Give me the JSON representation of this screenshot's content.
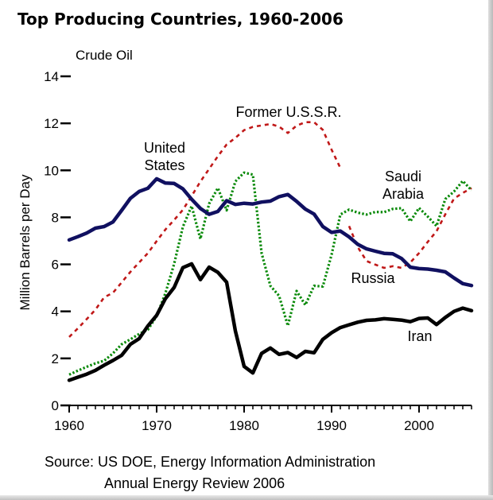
{
  "chart_data": {
    "type": "line",
    "title": "Top Producing Countries, 1960-2006",
    "subtitle": "Crude Oil",
    "xlabel": "",
    "ylabel": "Million Barrels per Day",
    "xlim": [
      1960,
      2006
    ],
    "ylim": [
      0,
      14
    ],
    "x_ticks": [
      1960,
      1970,
      1980,
      1990,
      2000
    ],
    "y_ticks": [
      0,
      2,
      4,
      6,
      8,
      10,
      12,
      14
    ],
    "grid": false,
    "legend": "none (series labeled directly on the plot)",
    "series": [
      {
        "name": "United States",
        "label": [
          "United",
          "States"
        ],
        "color": "#101060",
        "style": "solid",
        "points": [
          [
            1960,
            7.04
          ],
          [
            1961,
            7.18
          ],
          [
            1962,
            7.33
          ],
          [
            1963,
            7.54
          ],
          [
            1964,
            7.61
          ],
          [
            1965,
            7.8
          ],
          [
            1966,
            8.3
          ],
          [
            1967,
            8.81
          ],
          [
            1968,
            9.1
          ],
          [
            1969,
            9.24
          ],
          [
            1970,
            9.64
          ],
          [
            1971,
            9.46
          ],
          [
            1972,
            9.44
          ],
          [
            1973,
            9.21
          ],
          [
            1974,
            8.77
          ],
          [
            1975,
            8.38
          ],
          [
            1976,
            8.13
          ],
          [
            1977,
            8.25
          ],
          [
            1978,
            8.71
          ],
          [
            1979,
            8.55
          ],
          [
            1980,
            8.6
          ],
          [
            1981,
            8.57
          ],
          [
            1982,
            8.65
          ],
          [
            1983,
            8.69
          ],
          [
            1984,
            8.88
          ],
          [
            1985,
            8.97
          ],
          [
            1986,
            8.68
          ],
          [
            1987,
            8.35
          ],
          [
            1988,
            8.14
          ],
          [
            1989,
            7.61
          ],
          [
            1990,
            7.36
          ],
          [
            1991,
            7.42
          ],
          [
            1992,
            7.17
          ],
          [
            1993,
            6.85
          ],
          [
            1994,
            6.66
          ],
          [
            1995,
            6.56
          ],
          [
            1996,
            6.47
          ],
          [
            1997,
            6.45
          ],
          [
            1998,
            6.25
          ],
          [
            1999,
            5.88
          ],
          [
            2000,
            5.82
          ],
          [
            2001,
            5.8
          ],
          [
            2002,
            5.75
          ],
          [
            2003,
            5.68
          ],
          [
            2004,
            5.42
          ],
          [
            2005,
            5.18
          ],
          [
            2006,
            5.1
          ]
        ]
      },
      {
        "name": "Former U.S.S.R.",
        "label": [
          "Former U.S.S.R."
        ],
        "color": "#c01818",
        "style": "dashed",
        "points": [
          [
            1960,
            2.91
          ],
          [
            1961,
            3.28
          ],
          [
            1962,
            3.67
          ],
          [
            1963,
            4.07
          ],
          [
            1964,
            4.6
          ],
          [
            1965,
            4.79
          ],
          [
            1966,
            5.23
          ],
          [
            1967,
            5.68
          ],
          [
            1968,
            6.08
          ],
          [
            1969,
            6.48
          ],
          [
            1970,
            6.99
          ],
          [
            1971,
            7.48
          ],
          [
            1972,
            7.89
          ],
          [
            1973,
            8.32
          ],
          [
            1974,
            8.91
          ],
          [
            1975,
            9.52
          ],
          [
            1976,
            10.06
          ],
          [
            1977,
            10.6
          ],
          [
            1978,
            11.1
          ],
          [
            1979,
            11.38
          ],
          [
            1980,
            11.71
          ],
          [
            1981,
            11.85
          ],
          [
            1982,
            11.91
          ],
          [
            1983,
            11.97
          ],
          [
            1984,
            11.86
          ],
          [
            1985,
            11.59
          ],
          [
            1986,
            11.9
          ],
          [
            1987,
            12.05
          ],
          [
            1988,
            12.05
          ],
          [
            1989,
            11.72
          ],
          [
            1990,
            10.88
          ],
          [
            1991,
            10.1
          ]
        ]
      },
      {
        "name": "Russia",
        "label": [
          "Russia"
        ],
        "color": "#c01818",
        "style": "dashed",
        "points": [
          [
            1992,
            7.63
          ],
          [
            1993,
            6.73
          ],
          [
            1994,
            6.14
          ],
          [
            1995,
            5.99
          ],
          [
            1996,
            5.85
          ],
          [
            1997,
            5.92
          ],
          [
            1998,
            5.85
          ],
          [
            1999,
            6.08
          ],
          [
            2000,
            6.48
          ],
          [
            2001,
            6.96
          ],
          [
            2002,
            7.41
          ],
          [
            2003,
            8.13
          ],
          [
            2004,
            8.8
          ],
          [
            2005,
            9.04
          ],
          [
            2006,
            9.25
          ]
        ]
      },
      {
        "name": "Saudi Arabia",
        "label": [
          "Saudi",
          "Arabia"
        ],
        "color": "#0a8a0a",
        "style": "dotted",
        "points": [
          [
            1960,
            1.31
          ],
          [
            1961,
            1.48
          ],
          [
            1962,
            1.64
          ],
          [
            1963,
            1.79
          ],
          [
            1964,
            1.9
          ],
          [
            1965,
            2.21
          ],
          [
            1966,
            2.6
          ],
          [
            1967,
            2.81
          ],
          [
            1968,
            3.04
          ],
          [
            1969,
            3.22
          ],
          [
            1970,
            3.8
          ],
          [
            1971,
            4.77
          ],
          [
            1972,
            6.02
          ],
          [
            1973,
            7.6
          ],
          [
            1974,
            8.48
          ],
          [
            1975,
            7.08
          ],
          [
            1976,
            8.58
          ],
          [
            1977,
            9.25
          ],
          [
            1978,
            8.3
          ],
          [
            1979,
            9.53
          ],
          [
            1980,
            9.9
          ],
          [
            1981,
            9.82
          ],
          [
            1982,
            6.48
          ],
          [
            1983,
            5.09
          ],
          [
            1984,
            4.66
          ],
          [
            1985,
            3.39
          ],
          [
            1986,
            4.87
          ],
          [
            1987,
            4.27
          ],
          [
            1988,
            5.09
          ],
          [
            1989,
            5.06
          ],
          [
            1990,
            6.41
          ],
          [
            1991,
            8.12
          ],
          [
            1992,
            8.33
          ],
          [
            1993,
            8.2
          ],
          [
            1994,
            8.12
          ],
          [
            1995,
            8.23
          ],
          [
            1996,
            8.22
          ],
          [
            1997,
            8.36
          ],
          [
            1998,
            8.39
          ],
          [
            1999,
            7.83
          ],
          [
            2000,
            8.4
          ],
          [
            2001,
            8.03
          ],
          [
            2002,
            7.63
          ],
          [
            2003,
            8.78
          ],
          [
            2004,
            9.1
          ],
          [
            2005,
            9.55
          ],
          [
            2006,
            9.15
          ]
        ]
      },
      {
        "name": "Iran",
        "label": [
          "Iran"
        ],
        "color": "#000000",
        "style": "solid",
        "points": [
          [
            1960,
            1.07
          ],
          [
            1961,
            1.2
          ],
          [
            1962,
            1.33
          ],
          [
            1963,
            1.49
          ],
          [
            1964,
            1.71
          ],
          [
            1965,
            1.91
          ],
          [
            1966,
            2.13
          ],
          [
            1967,
            2.6
          ],
          [
            1968,
            2.84
          ],
          [
            1969,
            3.38
          ],
          [
            1970,
            3.83
          ],
          [
            1971,
            4.54
          ],
          [
            1972,
            5.02
          ],
          [
            1973,
            5.86
          ],
          [
            1974,
            6.02
          ],
          [
            1975,
            5.35
          ],
          [
            1976,
            5.88
          ],
          [
            1977,
            5.66
          ],
          [
            1978,
            5.24
          ],
          [
            1979,
            3.17
          ],
          [
            1980,
            1.66
          ],
          [
            1981,
            1.38
          ],
          [
            1982,
            2.21
          ],
          [
            1983,
            2.44
          ],
          [
            1984,
            2.17
          ],
          [
            1985,
            2.25
          ],
          [
            1986,
            2.04
          ],
          [
            1987,
            2.3
          ],
          [
            1988,
            2.24
          ],
          [
            1989,
            2.81
          ],
          [
            1990,
            3.09
          ],
          [
            1991,
            3.31
          ],
          [
            1992,
            3.43
          ],
          [
            1993,
            3.54
          ],
          [
            1994,
            3.62
          ],
          [
            1995,
            3.64
          ],
          [
            1996,
            3.69
          ],
          [
            1997,
            3.66
          ],
          [
            1998,
            3.63
          ],
          [
            1999,
            3.56
          ],
          [
            2000,
            3.7
          ],
          [
            2001,
            3.72
          ],
          [
            2002,
            3.44
          ],
          [
            2003,
            3.74
          ],
          [
            2004,
            4.0
          ],
          [
            2005,
            4.14
          ],
          [
            2006,
            4.03
          ]
        ]
      }
    ],
    "source": [
      "Source: US DOE, Energy Information Administration",
      "Annual Energy Review 2006"
    ]
  }
}
